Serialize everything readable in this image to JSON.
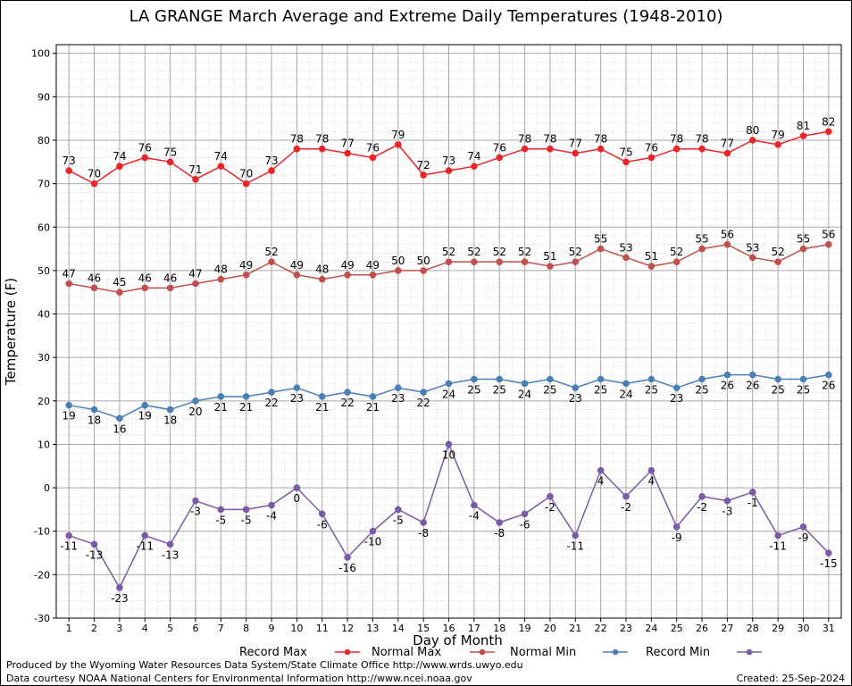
{
  "chart_data": {
    "type": "line",
    "title": "LA GRANGE March Average and Extreme Daily Temperatures (1948-2010)",
    "xlabel": "Day of Month",
    "ylabel": "Temperature (F)",
    "xlim": [
      1,
      31
    ],
    "ylim": [
      -30,
      100
    ],
    "yticks": [
      -30,
      -20,
      -10,
      0,
      10,
      20,
      30,
      40,
      50,
      60,
      70,
      80,
      90,
      100
    ],
    "x": [
      1,
      2,
      3,
      4,
      5,
      6,
      7,
      8,
      9,
      10,
      11,
      12,
      13,
      14,
      15,
      16,
      17,
      18,
      19,
      20,
      21,
      22,
      23,
      24,
      25,
      26,
      27,
      28,
      29,
      30,
      31
    ],
    "grid": true,
    "legend_position": "bottom",
    "series": [
      {
        "name": "Record Max",
        "color": "#e8262a",
        "values": [
          73,
          70,
          74,
          76,
          75,
          71,
          74,
          70,
          73,
          78,
          78,
          77,
          76,
          79,
          72,
          73,
          74,
          76,
          78,
          78,
          77,
          78,
          75,
          76,
          78,
          78,
          77,
          80,
          79,
          81,
          82
        ],
        "label_pos": "above"
      },
      {
        "name": "Normal Max",
        "color": "#c0504d",
        "values": [
          47,
          46,
          45,
          46,
          46,
          47,
          48,
          49,
          52,
          49,
          48,
          49,
          49,
          50,
          50,
          52,
          52,
          52,
          52,
          51,
          52,
          55,
          53,
          51,
          52,
          55,
          56,
          53,
          52,
          55,
          56
        ],
        "label_pos": "above"
      },
      {
        "name": "Normal Min",
        "color": "#4a7fb5",
        "values": [
          19,
          18,
          16,
          19,
          18,
          20,
          21,
          21,
          22,
          23,
          21,
          22,
          21,
          23,
          22,
          24,
          25,
          25,
          24,
          25,
          23,
          25,
          24,
          25,
          23,
          25,
          26,
          26,
          25,
          25,
          26
        ],
        "label_pos": "below"
      },
      {
        "name": "Record Min",
        "color": "#7b5aa6",
        "values": [
          -11,
          -13,
          -23,
          -11,
          -13,
          -3,
          -5,
          -5,
          -4,
          0,
          -6,
          -16,
          -10,
          -5,
          -8,
          10,
          -4,
          -8,
          -6,
          -2,
          -11,
          4,
          -2,
          4,
          -9,
          -2,
          -3,
          -1,
          -11,
          -9,
          -15
        ],
        "label_pos": "below"
      }
    ]
  },
  "footer": {
    "produced_by": "Produced by the Wyoming Water Resources Data System/State Climate Office http://www.wrds.uwyo.edu",
    "courtesy": "Data courtesy NOAA National Centers for Environmental Information http://www.ncei.noaa.gov",
    "created": "Created:  25-Sep-2024"
  }
}
